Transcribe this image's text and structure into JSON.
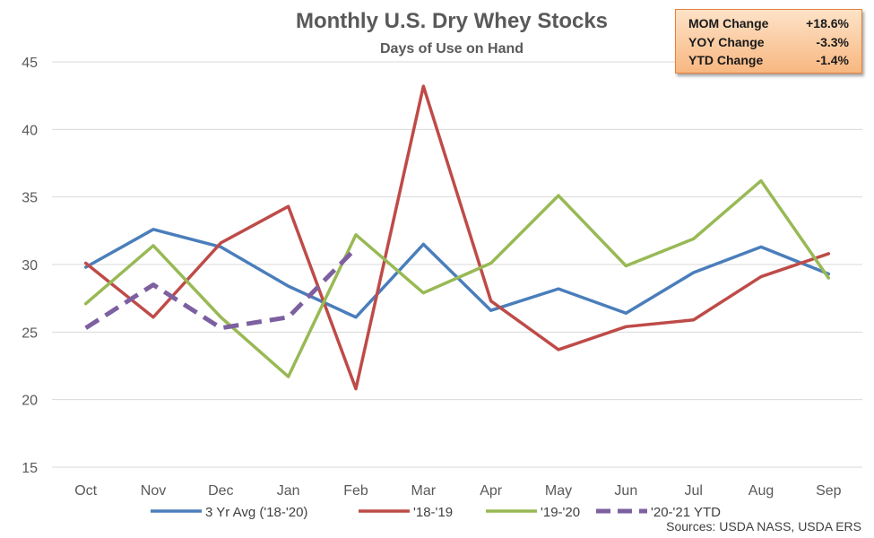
{
  "chart_data": {
    "type": "line",
    "title": "Monthly U.S. Dry Whey Stocks",
    "subtitle": "Days of Use on Hand",
    "categories": [
      "Oct",
      "Nov",
      "Dec",
      "Jan",
      "Feb",
      "Mar",
      "Apr",
      "May",
      "Jun",
      "Jul",
      "Aug",
      "Sep"
    ],
    "ylim": [
      15,
      45
    ],
    "yticks": [
      "15",
      "20",
      "25",
      "30",
      "35",
      "40",
      "45"
    ],
    "xlabel": "",
    "ylabel": "",
    "grid": true,
    "legend_position": "bottom",
    "series": [
      {
        "name": "3 Yr Avg ('18-'20)",
        "color": "#4a7ebb",
        "dash": false,
        "values": [
          29.8,
          32.6,
          31.3,
          28.4,
          26.1,
          31.5,
          26.6,
          28.2,
          26.4,
          29.4,
          31.3,
          29.3
        ]
      },
      {
        "name": "'18-'19",
        "color": "#be4b48",
        "dash": false,
        "values": [
          30.1,
          26.1,
          31.6,
          34.3,
          20.8,
          43.2,
          27.3,
          23.7,
          25.4,
          25.9,
          29.1,
          30.8
        ]
      },
      {
        "name": "'19-'20",
        "color": "#98b954",
        "dash": false,
        "values": [
          27.1,
          31.4,
          26.1,
          21.7,
          32.2,
          27.9,
          30.1,
          35.1,
          29.9,
          31.9,
          36.2,
          29.0
        ]
      },
      {
        "name": "'20-'21 YTD",
        "color": "#7d60a0",
        "dash": true,
        "values": [
          25.3,
          28.5,
          25.3,
          26.1,
          31.2,
          null,
          null,
          null,
          null,
          null,
          null,
          null
        ]
      }
    ]
  },
  "stats": [
    {
      "label": "MOM Change",
      "value": "+18.6%"
    },
    {
      "label": "YOY Change",
      "value": "-3.3%"
    },
    {
      "label": "YTD Change",
      "value": "-1.4%"
    }
  ],
  "source": "Sources: USDA NASS, USDA ERS"
}
